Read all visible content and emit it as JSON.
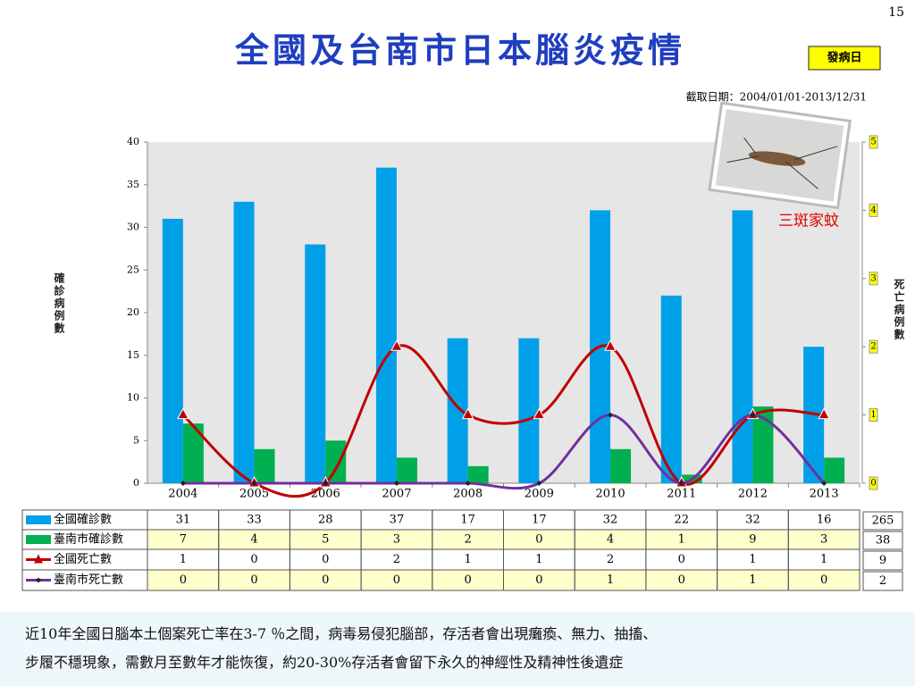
{
  "page_number": "15",
  "title": "全國及台南市日本腦炎疫情",
  "badge": "發病日",
  "date_range": "截取日期：2004/01/01-2013/12/31",
  "mosquito_label": "三斑家蚊",
  "footer": [
    "近10年全國日腦本土個案死亡率在3-7 ％之間，病毒易侵犯腦部，存活者會出現癱瘓、無力、抽搐、",
    "步履不穩現象，需數月至數年才能恢復，約20-30%存活者會留下永久的神經性及精神性後遺症"
  ],
  "chart_data": {
    "type": "bar",
    "y_label": "確診病例數",
    "y2_label": "死亡病例數",
    "categories": [
      "2004",
      "2005",
      "2006",
      "2007",
      "2008",
      "2009",
      "2010",
      "2011",
      "2012",
      "2013"
    ],
    "series": [
      {
        "name": "全國確診數",
        "type": "bar",
        "color": "#00a0e9",
        "values": [
          31,
          33,
          28,
          37,
          17,
          17,
          32,
          22,
          32,
          16
        ]
      },
      {
        "name": "臺南市確診數",
        "type": "bar",
        "color": "#00b050",
        "values": [
          7,
          4,
          5,
          3,
          2,
          0,
          4,
          1,
          9,
          3
        ]
      },
      {
        "name": "全國死亡數",
        "type": "line",
        "axis": "y2",
        "color": "#c00000",
        "values": [
          1,
          0,
          0,
          2,
          1,
          1,
          2,
          0,
          1,
          1
        ]
      },
      {
        "name": "臺南市死亡數",
        "type": "line",
        "axis": "y2",
        "color": "#7030a0",
        "values": [
          0,
          0,
          0,
          0,
          0,
          0,
          1,
          0,
          1,
          0
        ]
      }
    ],
    "totals": [
      265,
      38,
      9,
      2
    ],
    "ylim": [
      0,
      40
    ],
    "yticks": [
      0,
      5,
      10,
      15,
      20,
      25,
      30,
      35,
      40
    ],
    "y2lim": [
      0,
      5
    ],
    "y2ticks": [
      0,
      1,
      2,
      3,
      4,
      5
    ],
    "grid": false
  }
}
